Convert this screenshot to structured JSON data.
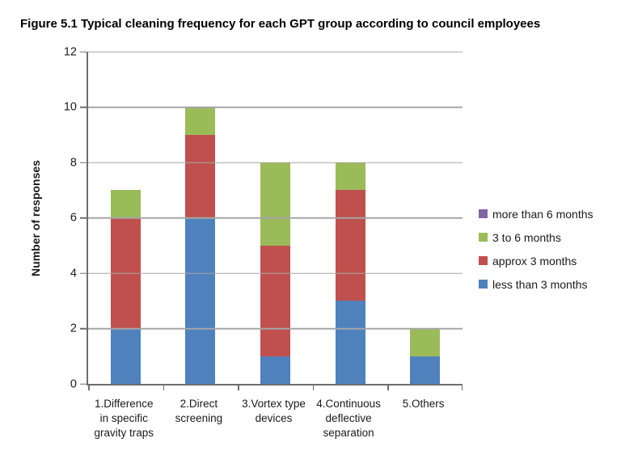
{
  "figure_caption": "Figure 5.1 Typical cleaning frequency for each GPT group according to council employees",
  "chart_data": {
    "type": "bar",
    "stacked": true,
    "title": "Figure 5.1 Typical cleaning frequency for each GPT group according to council employees",
    "xlabel": "",
    "ylabel": "Number of responses",
    "ylim": [
      0,
      12
    ],
    "ytick_step": 2,
    "grid": true,
    "legend_position": "right",
    "categories": [
      "1.Difference\nin specific\ngravity traps",
      "2.Direct\nscreening",
      "3.Vortex type\ndevices",
      "4.Continuous\ndeflective\nseparation",
      "5.Others"
    ],
    "series": [
      {
        "name": "less than 3 months",
        "color": "#4F81BD",
        "values": [
          2,
          6,
          1,
          3,
          1
        ]
      },
      {
        "name": "approx 3 months",
        "color": "#C0504D",
        "values": [
          4,
          3,
          4,
          4,
          0
        ]
      },
      {
        "name": "3 to 6 months",
        "color": "#9BBB59",
        "values": [
          1,
          1,
          3,
          1,
          1
        ]
      },
      {
        "name": "more than 6 months",
        "color": "#8064A2",
        "values": [
          0,
          0,
          0,
          0,
          0
        ]
      }
    ],
    "totals": [
      7,
      10,
      8,
      8,
      2
    ],
    "legend_order": [
      "more than 6 months",
      "3 to 6 months",
      "approx 3 months",
      "less than 3 months"
    ],
    "colors": {
      "gridline": "#A6A6A6",
      "axis": "#6E6E6E",
      "text": "#1A1A1A"
    }
  }
}
